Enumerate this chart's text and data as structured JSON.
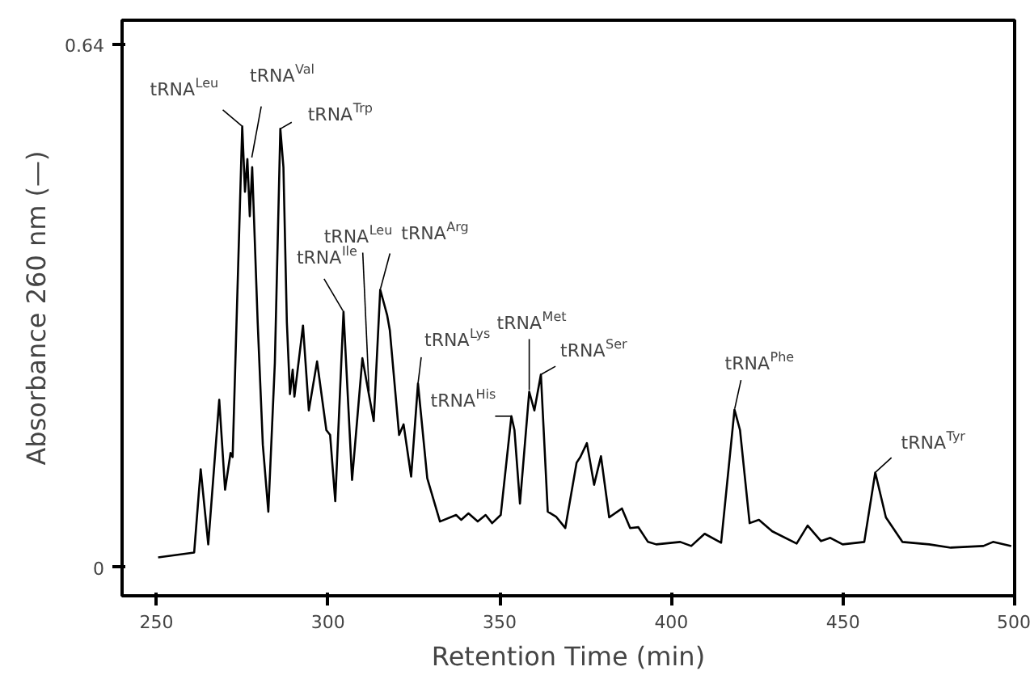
{
  "chart_data": {
    "type": "line",
    "xlabel": "Retention Time (min)",
    "ylabel": "Absorbance 260 nm (—)",
    "x": [
      250.5,
      261,
      262.9,
      265.1,
      268.3,
      270,
      271.6,
      272.2,
      275.0,
      275.8,
      276.5,
      277.2,
      277.9,
      279.5,
      281,
      282.6,
      284.5,
      286.1,
      287,
      288,
      288.9,
      289.7,
      290.2,
      292.7,
      294.4,
      296.8,
      299.5,
      300.6,
      302.1,
      304.5,
      307,
      310,
      313.3,
      315.2,
      317.2,
      318,
      320.7,
      322,
      324.2,
      326.2,
      328.9,
      332.6,
      337.3,
      338.8,
      340.9,
      343.6,
      345.9,
      347.8,
      350.3,
      353.4,
      354.3,
      355.9,
      358.6,
      360.1,
      362,
      364,
      366.4,
      369.1,
      372.4,
      373.5,
      375.4,
      377.5,
      379.5,
      381.9,
      385.6,
      388,
      390.4,
      393.2,
      395.6,
      402.6,
      405.8,
      409.7,
      414.5,
      418.4,
      420,
      422.8,
      425.5,
      429.4,
      436.5,
      439.7,
      443.6,
      446.3,
      449.9,
      456.2,
      459.4,
      462.5,
      467.3,
      475.1,
      481.4,
      490.9,
      493.7,
      499
    ],
    "series": [
      {
        "color": "#000000",
        "values": [
          0.012,
          0.018,
          0.12,
          0.028,
          0.205,
          0.095,
          0.14,
          0.135,
          0.54,
          0.46,
          0.5,
          0.43,
          0.49,
          0.3,
          0.15,
          0.068,
          0.25,
          0.537,
          0.49,
          0.3,
          0.212,
          0.242,
          0.209,
          0.296,
          0.192,
          0.252,
          0.168,
          0.162,
          0.081,
          0.313,
          0.107,
          0.256,
          0.179,
          0.34,
          0.309,
          0.29,
          0.162,
          0.175,
          0.111,
          0.225,
          0.109,
          0.056,
          0.064,
          0.058,
          0.066,
          0.056,
          0.064,
          0.054,
          0.064,
          0.185,
          0.168,
          0.078,
          0.215,
          0.192,
          0.236,
          0.068,
          0.062,
          0.048,
          0.128,
          0.135,
          0.152,
          0.101,
          0.136,
          0.061,
          0.072,
          0.048,
          0.049,
          0.031,
          0.028,
          0.031,
          0.026,
          0.041,
          0.03,
          0.193,
          0.168,
          0.054,
          0.058,
          0.044,
          0.029,
          0.051,
          0.032,
          0.036,
          0.028,
          0.031,
          0.116,
          0.061,
          0.031,
          0.028,
          0.024,
          0.026,
          0.031,
          0.026
        ]
      }
    ],
    "xlim": [
      240,
      500
    ],
    "ylim": [
      -0.035,
      0.67
    ],
    "xticks": [
      250,
      300,
      350,
      400,
      450,
      500
    ],
    "yticks": [
      0,
      0.64
    ],
    "grid": false,
    "marker": "none",
    "line_style": "solid",
    "annotations": [
      {
        "text": "tRNA$^{Leu}$",
        "x": 275.0,
        "y": 0.54
      },
      {
        "text": "tRNA$^{Val}$",
        "x": 277.7,
        "y": 0.5
      },
      {
        "text": "tRNA$^{Trp}$",
        "x": 286.1,
        "y": 0.537
      },
      {
        "text": "tRNA$^{Ile}$",
        "x": 304.5,
        "y": 0.313
      },
      {
        "text": "tRNA$^{Leu}$",
        "x": 312,
        "y": 0.21
      },
      {
        "text": "tRNA$^{Arg}$",
        "x": 315.2,
        "y": 0.34
      },
      {
        "text": "tRNA$^{Lys}$",
        "x": 326.2,
        "y": 0.225
      },
      {
        "text": "tRNA$^{His}$",
        "x": 353.4,
        "y": 0.185
      },
      {
        "text": "tRNA$^{Met}$",
        "x": 358.6,
        "y": 0.215
      },
      {
        "text": "tRNA$^{Ser}$",
        "x": 362,
        "y": 0.236
      },
      {
        "text": "tRNA$^{Phe}$",
        "x": 418.4,
        "y": 0.193
      },
      {
        "text": "tRNA$^{Tyr}$",
        "x": 459.4,
        "y": 0.116
      }
    ]
  }
}
